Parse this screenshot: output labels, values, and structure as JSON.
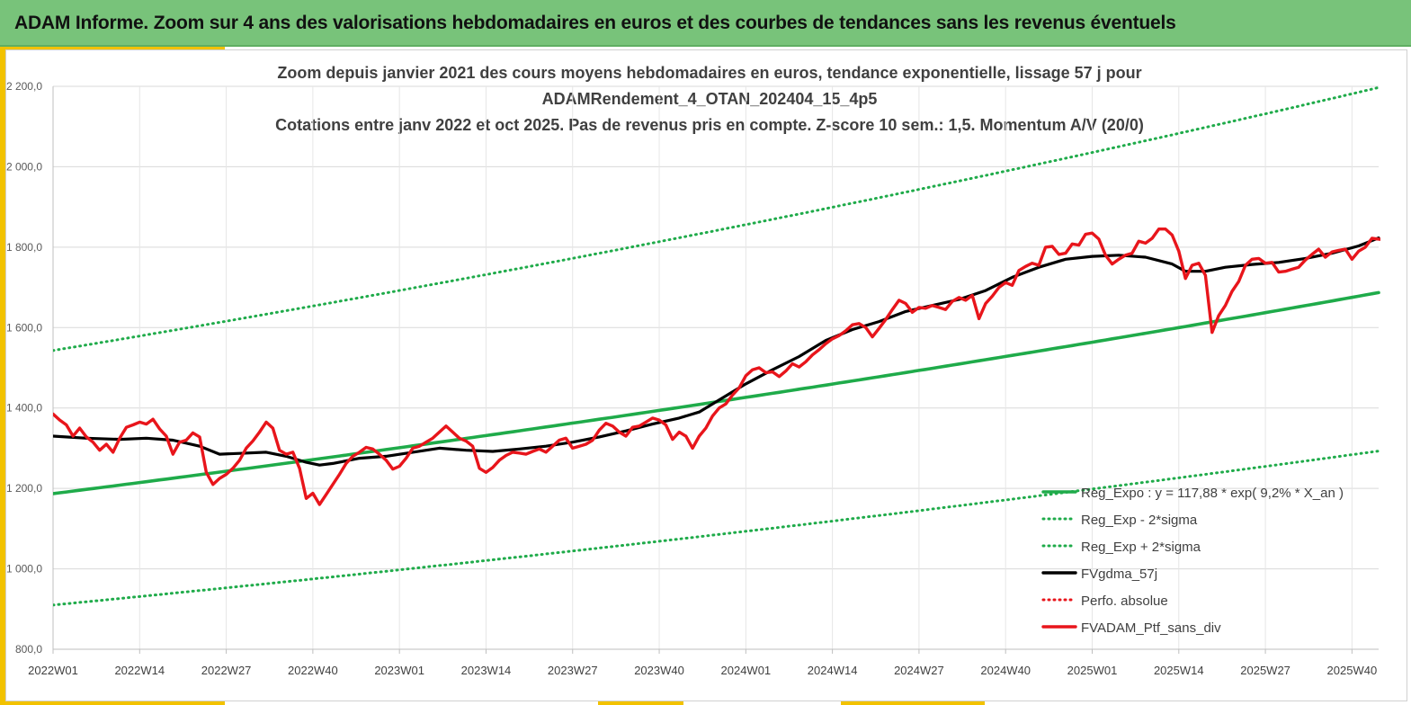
{
  "header": {
    "title": "ADAM Informe. Zoom sur 4 ans des valorisations hebdomadaires en euros et des courbes de tendances sans les revenus éventuels"
  },
  "colors": {
    "banner": "#78c37a",
    "accent": "#f2c200",
    "trend_green": "#1fab4a",
    "red": "#e8151b",
    "black": "#000000"
  },
  "chart_data": {
    "type": "line",
    "title_lines": [
      "Zoom depuis janvier 2021 des cours moyens hebdomadaires  en euros, tendance exponentielle, lissage 57 j pour",
      "ADAMRendement_4_OTAN_202404_15_4p5",
      "Cotations  entre janv 2022 et oct 2025. Pas de revenus pris en compte. Z-score 10 sem.: 1,5. Momentum A/V (20/0)"
    ],
    "ylim": [
      800,
      2200
    ],
    "yticks": [
      "800,0",
      "1 000,0",
      "1 200,0",
      "1 400,0",
      "1 600,0",
      "1 800,0",
      "2 000,0",
      "2 200,0"
    ],
    "x_ticks": [
      {
        "week": 0,
        "label": "2022W01"
      },
      {
        "week": 13,
        "label": "2022W14"
      },
      {
        "week": 26,
        "label": "2022W27"
      },
      {
        "week": 39,
        "label": "2022W40"
      },
      {
        "week": 52,
        "label": "2023W01"
      },
      {
        "week": 65,
        "label": "2023W14"
      },
      {
        "week": 78,
        "label": "2023W27"
      },
      {
        "week": 91,
        "label": "2023W40"
      },
      {
        "week": 104,
        "label": "2024W01"
      },
      {
        "week": 117,
        "label": "2024W14"
      },
      {
        "week": 130,
        "label": "2024W27"
      },
      {
        "week": 143,
        "label": "2024W40"
      },
      {
        "week": 156,
        "label": "2025W01"
      },
      {
        "week": 169,
        "label": "2025W14"
      },
      {
        "week": 182,
        "label": "2025W27"
      },
      {
        "week": 195,
        "label": "2025W40"
      }
    ],
    "x_max_week": 199,
    "legend": [
      {
        "label": "Reg_Expo : y = 117,88 * exp( 9,2% *  X_an )",
        "color": "#1fab4a",
        "style": "solid"
      },
      {
        "label": "Reg_Exp - 2*sigma",
        "color": "#1fab4a",
        "style": "dotted"
      },
      {
        "label": "Reg_Exp + 2*sigma",
        "color": "#1fab4a",
        "style": "dotted"
      },
      {
        "label": "FVgdma_57j",
        "color": "#000000",
        "style": "solid"
      },
      {
        "label": "Perfo. absolue",
        "color": "#e8151b",
        "style": "dotted"
      },
      {
        "label": "FVADAM_Ptf_sans_div",
        "color": "#e8151b",
        "style": "solid"
      }
    ],
    "series": [
      {
        "name": "Reg_Expo",
        "color": "#1fab4a",
        "style": "solid",
        "start": 1187,
        "end": 1687
      },
      {
        "name": "Reg_Exp - 2*sigma",
        "color": "#1fab4a",
        "style": "dotted",
        "start": 910,
        "end": 1293
      },
      {
        "name": "Reg_Exp + 2*sigma",
        "color": "#1fab4a",
        "style": "dotted",
        "start": 1543,
        "end": 2197
      },
      {
        "name": "FVgdma_57j",
        "color": "#000000",
        "style": "solid",
        "points": [
          [
            0,
            1330
          ],
          [
            5,
            1325
          ],
          [
            10,
            1322
          ],
          [
            14,
            1325
          ],
          [
            18,
            1320
          ],
          [
            22,
            1305
          ],
          [
            25,
            1285
          ],
          [
            28,
            1287
          ],
          [
            32,
            1290
          ],
          [
            35,
            1280
          ],
          [
            38,
            1265
          ],
          [
            40,
            1258
          ],
          [
            42,
            1262
          ],
          [
            46,
            1275
          ],
          [
            50,
            1280
          ],
          [
            54,
            1290
          ],
          [
            58,
            1300
          ],
          [
            62,
            1295
          ],
          [
            66,
            1292
          ],
          [
            70,
            1298
          ],
          [
            74,
            1305
          ],
          [
            78,
            1315
          ],
          [
            82,
            1328
          ],
          [
            86,
            1343
          ],
          [
            90,
            1360
          ],
          [
            94,
            1375
          ],
          [
            97,
            1390
          ],
          [
            100,
            1420
          ],
          [
            104,
            1460
          ],
          [
            108,
            1495
          ],
          [
            112,
            1528
          ],
          [
            116,
            1568
          ],
          [
            120,
            1595
          ],
          [
            124,
            1615
          ],
          [
            128,
            1640
          ],
          [
            132,
            1655
          ],
          [
            136,
            1670
          ],
          [
            140,
            1692
          ],
          [
            144,
            1725
          ],
          [
            148,
            1750
          ],
          [
            152,
            1770
          ],
          [
            156,
            1777
          ],
          [
            160,
            1780
          ],
          [
            164,
            1775
          ],
          [
            168,
            1758
          ],
          [
            170,
            1740
          ],
          [
            173,
            1740
          ],
          [
            176,
            1750
          ],
          [
            180,
            1757
          ],
          [
            184,
            1762
          ],
          [
            188,
            1772
          ],
          [
            192,
            1785
          ],
          [
            196,
            1803
          ],
          [
            199,
            1823
          ]
        ]
      },
      {
        "name": "FVADAM_Ptf_sans_div",
        "color": "#e8151b",
        "style": "solid",
        "points": [
          [
            0,
            1385
          ],
          [
            1,
            1370
          ],
          [
            2,
            1358
          ],
          [
            3,
            1330
          ],
          [
            4,
            1350
          ],
          [
            5,
            1328
          ],
          [
            6,
            1315
          ],
          [
            7,
            1295
          ],
          [
            8,
            1310
          ],
          [
            9,
            1290
          ],
          [
            10,
            1325
          ],
          [
            11,
            1352
          ],
          [
            12,
            1358
          ],
          [
            13,
            1365
          ],
          [
            14,
            1360
          ],
          [
            15,
            1372
          ],
          [
            16,
            1348
          ],
          [
            17,
            1330
          ],
          [
            18,
            1285
          ],
          [
            19,
            1315
          ],
          [
            20,
            1320
          ],
          [
            21,
            1338
          ],
          [
            22,
            1328
          ],
          [
            23,
            1240
          ],
          [
            24,
            1210
          ],
          [
            25,
            1225
          ],
          [
            26,
            1235
          ],
          [
            27,
            1250
          ],
          [
            28,
            1270
          ],
          [
            29,
            1300
          ],
          [
            30,
            1318
          ],
          [
            31,
            1340
          ],
          [
            32,
            1365
          ],
          [
            33,
            1350
          ],
          [
            34,
            1295
          ],
          [
            35,
            1285
          ],
          [
            36,
            1290
          ],
          [
            37,
            1250
          ],
          [
            38,
            1175
          ],
          [
            39,
            1188
          ],
          [
            40,
            1160
          ],
          [
            41,
            1185
          ],
          [
            42,
            1210
          ],
          [
            43,
            1235
          ],
          [
            44,
            1262
          ],
          [
            45,
            1280
          ],
          [
            46,
            1290
          ],
          [
            47,
            1302
          ],
          [
            48,
            1298
          ],
          [
            49,
            1285
          ],
          [
            50,
            1270
          ],
          [
            51,
            1248
          ],
          [
            52,
            1255
          ],
          [
            53,
            1275
          ],
          [
            54,
            1300
          ],
          [
            55,
            1305
          ],
          [
            56,
            1315
          ],
          [
            57,
            1325
          ],
          [
            58,
            1340
          ],
          [
            59,
            1355
          ],
          [
            60,
            1340
          ],
          [
            61,
            1325
          ],
          [
            62,
            1318
          ],
          [
            63,
            1305
          ],
          [
            64,
            1250
          ],
          [
            65,
            1240
          ],
          [
            66,
            1252
          ],
          [
            67,
            1270
          ],
          [
            68,
            1282
          ],
          [
            69,
            1290
          ],
          [
            70,
            1288
          ],
          [
            71,
            1285
          ],
          [
            72,
            1292
          ],
          [
            73,
            1298
          ],
          [
            74,
            1290
          ],
          [
            75,
            1305
          ],
          [
            76,
            1320
          ],
          [
            77,
            1325
          ],
          [
            78,
            1300
          ],
          [
            79,
            1305
          ],
          [
            80,
            1310
          ],
          [
            81,
            1320
          ],
          [
            82,
            1345
          ],
          [
            83,
            1362
          ],
          [
            84,
            1355
          ],
          [
            85,
            1340
          ],
          [
            86,
            1330
          ],
          [
            87,
            1352
          ],
          [
            88,
            1355
          ],
          [
            89,
            1365
          ],
          [
            90,
            1375
          ],
          [
            91,
            1370
          ],
          [
            92,
            1358
          ],
          [
            93,
            1322
          ],
          [
            94,
            1340
          ],
          [
            95,
            1330
          ],
          [
            96,
            1300
          ],
          [
            97,
            1330
          ],
          [
            98,
            1350
          ],
          [
            99,
            1380
          ],
          [
            100,
            1400
          ],
          [
            101,
            1410
          ],
          [
            102,
            1432
          ],
          [
            103,
            1450
          ],
          [
            104,
            1480
          ],
          [
            105,
            1495
          ],
          [
            106,
            1500
          ],
          [
            107,
            1488
          ],
          [
            108,
            1490
          ],
          [
            109,
            1478
          ],
          [
            110,
            1492
          ],
          [
            111,
            1510
          ],
          [
            112,
            1502
          ],
          [
            113,
            1515
          ],
          [
            114,
            1532
          ],
          [
            115,
            1545
          ],
          [
            116,
            1560
          ],
          [
            117,
            1572
          ],
          [
            118,
            1580
          ],
          [
            119,
            1592
          ],
          [
            120,
            1607
          ],
          [
            121,
            1610
          ],
          [
            122,
            1600
          ],
          [
            123,
            1577
          ],
          [
            124,
            1598
          ],
          [
            125,
            1620
          ],
          [
            126,
            1645
          ],
          [
            127,
            1668
          ],
          [
            128,
            1660
          ],
          [
            129,
            1638
          ],
          [
            130,
            1650
          ],
          [
            131,
            1648
          ],
          [
            132,
            1655
          ],
          [
            133,
            1650
          ],
          [
            134,
            1645
          ],
          [
            135,
            1665
          ],
          [
            136,
            1675
          ],
          [
            137,
            1668
          ],
          [
            138,
            1680
          ],
          [
            139,
            1622
          ],
          [
            140,
            1660
          ],
          [
            141,
            1678
          ],
          [
            142,
            1700
          ],
          [
            143,
            1712
          ],
          [
            144,
            1705
          ],
          [
            145,
            1742
          ],
          [
            146,
            1752
          ],
          [
            147,
            1760
          ],
          [
            148,
            1755
          ],
          [
            149,
            1800
          ],
          [
            150,
            1802
          ],
          [
            151,
            1782
          ],
          [
            152,
            1785
          ],
          [
            153,
            1808
          ],
          [
            154,
            1805
          ],
          [
            155,
            1832
          ],
          [
            156,
            1835
          ],
          [
            157,
            1820
          ],
          [
            158,
            1780
          ],
          [
            159,
            1758
          ],
          [
            160,
            1770
          ],
          [
            161,
            1780
          ],
          [
            162,
            1785
          ],
          [
            163,
            1815
          ],
          [
            164,
            1810
          ],
          [
            165,
            1822
          ],
          [
            166,
            1845
          ],
          [
            167,
            1845
          ],
          [
            168,
            1830
          ],
          [
            169,
            1790
          ],
          [
            170,
            1722
          ],
          [
            171,
            1755
          ],
          [
            172,
            1760
          ],
          [
            173,
            1730
          ],
          [
            174,
            1588
          ],
          [
            175,
            1630
          ],
          [
            176,
            1655
          ],
          [
            177,
            1690
          ],
          [
            178,
            1715
          ],
          [
            179,
            1755
          ],
          [
            180,
            1770
          ],
          [
            181,
            1772
          ],
          [
            182,
            1760
          ],
          [
            183,
            1762
          ],
          [
            184,
            1738
          ],
          [
            185,
            1740
          ],
          [
            186,
            1745
          ],
          [
            187,
            1750
          ],
          [
            188,
            1768
          ],
          [
            189,
            1782
          ],
          [
            190,
            1795
          ],
          [
            191,
            1775
          ],
          [
            192,
            1788
          ],
          [
            193,
            1792
          ],
          [
            194,
            1795
          ],
          [
            195,
            1770
          ],
          [
            196,
            1790
          ],
          [
            197,
            1800
          ],
          [
            198,
            1822
          ],
          [
            199,
            1820
          ],
          [
            200,
            1818
          ],
          [
            201,
            1838
          ],
          [
            202,
            1845
          ]
        ]
      }
    ]
  }
}
